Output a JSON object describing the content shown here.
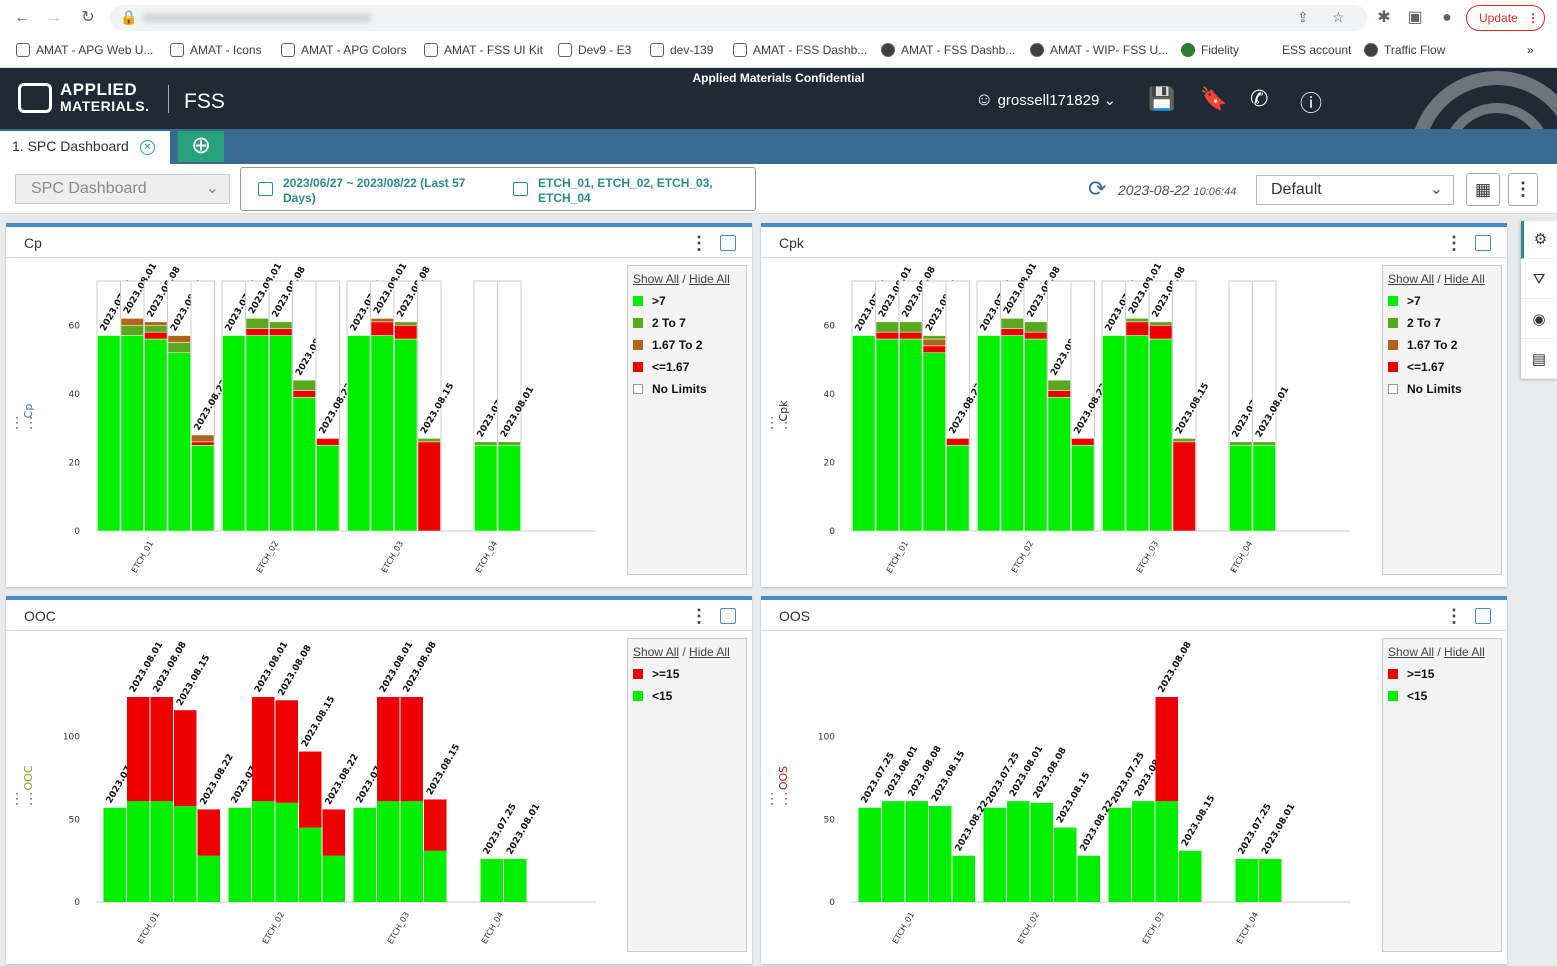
{
  "browser": {
    "update_label": "Update",
    "bookmarks": [
      "AMAT - APG Web U...",
      "AMAT - Icons",
      "AMAT - APG Colors",
      "AMAT - FSS UI Kit",
      "Dev9 - E3",
      "dev-139",
      "AMAT - FSS Dashb...",
      "AMAT - FSS Dashb...",
      "AMAT - WIP- FSS U...",
      "Fidelity",
      "ESS account",
      "Traffic Flow"
    ]
  },
  "header": {
    "logo_line1": "APPLIED",
    "logo_line2": "MATERIALS.",
    "app": "FSS",
    "confidential": "Applied Materials Confidential",
    "user": "grossell171829"
  },
  "tabs": {
    "active": "1. SPC Dashboard"
  },
  "toolbar": {
    "dashboard": "SPC Dashboard",
    "date_range": "2023/06/27 ~ 2023/08/22 (Last 57 Days)",
    "equipment": "ETCH_01, ETCH_02, ETCH_03, ETCH_04",
    "timestamp_date": "2023-08-22",
    "timestamp_time": "10:06:44",
    "view": "Default"
  },
  "colors": {
    "green": "#00ee00",
    "olive": "#5aa81e",
    "brown": "#b0661a",
    "red": "#ee0000",
    "accent": "#4a8cc7",
    "teal": "#2c8c8c"
  },
  "legend": {
    "show_all": "Show All",
    "hide_all": "Hide All"
  },
  "chart_data": [
    {
      "id": "cp",
      "title": "Cp",
      "type": "bar",
      "stacked": true,
      "ylabel": "Cp",
      "ylabel_color": "#3b7bd1",
      "ylim": [
        0,
        70
      ],
      "yticks": [
        0,
        20,
        40,
        60
      ],
      "categories": [
        "ETCH_01",
        "ETCH_02",
        "ETCH_03",
        "ETCH_04"
      ],
      "legend": [
        {
          "name": ">7",
          "color": "#00ee00"
        },
        {
          "name": "2 To 7",
          "color": "#5aa81e"
        },
        {
          "name": "1.67 To 2",
          "color": "#b0661a"
        },
        {
          "name": "<=1.67",
          "color": "#ee0000"
        },
        {
          "name": "No Limits",
          "color": "#ffffff"
        }
      ],
      "bars": [
        {
          "group": 0,
          "label": "2023.07.25",
          "segments": [
            [
              "#00ee00",
              57
            ]
          ]
        },
        {
          "group": 0,
          "label": "2023.08.01",
          "segments": [
            [
              "#00ee00",
              57
            ],
            [
              "#5aa81e",
              3
            ],
            [
              "#b0661a",
              2
            ]
          ]
        },
        {
          "group": 0,
          "label": "2023.08.08",
          "segments": [
            [
              "#00ee00",
              56
            ],
            [
              "#ee0000",
              2
            ],
            [
              "#5aa81e",
              2
            ],
            [
              "#b0661a",
              1
            ]
          ]
        },
        {
          "group": 0,
          "label": "2023.08.15",
          "segments": [
            [
              "#00ee00",
              52
            ],
            [
              "#5aa81e",
              3
            ],
            [
              "#b0661a",
              2
            ]
          ]
        },
        {
          "group": 0,
          "label": "2023.08.22",
          "segments": [
            [
              "#00ee00",
              25
            ],
            [
              "#ee0000",
              1
            ],
            [
              "#b0661a",
              2
            ]
          ]
        },
        {
          "group": 1,
          "label": "2023.07.25",
          "segments": [
            [
              "#00ee00",
              57
            ]
          ]
        },
        {
          "group": 1,
          "label": "2023.08.01",
          "segments": [
            [
              "#00ee00",
              57
            ],
            [
              "#ee0000",
              2
            ],
            [
              "#5aa81e",
              3
            ]
          ]
        },
        {
          "group": 1,
          "label": "2023.08.08",
          "segments": [
            [
              "#00ee00",
              57
            ],
            [
              "#ee0000",
              2
            ],
            [
              "#5aa81e",
              2
            ]
          ]
        },
        {
          "group": 1,
          "label": "2023.08.15",
          "segments": [
            [
              "#00ee00",
              39
            ],
            [
              "#ee0000",
              2
            ],
            [
              "#5aa81e",
              3
            ]
          ]
        },
        {
          "group": 1,
          "label": "2023.08.22",
          "segments": [
            [
              "#00ee00",
              25
            ],
            [
              "#ee0000",
              2
            ]
          ]
        },
        {
          "group": 2,
          "label": "2023.07.25",
          "segments": [
            [
              "#00ee00",
              57
            ]
          ]
        },
        {
          "group": 2,
          "label": "2023.08.01",
          "segments": [
            [
              "#00ee00",
              57
            ],
            [
              "#ee0000",
              4
            ],
            [
              "#b0661a",
              1
            ]
          ]
        },
        {
          "group": 2,
          "label": "2023.08.08",
          "segments": [
            [
              "#00ee00",
              56
            ],
            [
              "#ee0000",
              4
            ],
            [
              "#5aa81e",
              1
            ]
          ]
        },
        {
          "group": 2,
          "label": "2023.08.15",
          "segments": [
            [
              "#ee0000",
              26
            ],
            [
              "#5aa81e",
              1
            ]
          ]
        },
        {
          "group": 3,
          "label": "2023.07.25",
          "segments": [
            [
              "#00ee00",
              25
            ],
            [
              "#5aa81e",
              1
            ]
          ]
        },
        {
          "group": 3,
          "label": "2023.08.01",
          "segments": [
            [
              "#00ee00",
              25
            ],
            [
              "#5aa81e",
              1
            ]
          ]
        }
      ]
    },
    {
      "id": "cpk",
      "title": "Cpk",
      "type": "bar",
      "stacked": true,
      "ylabel": "Cpk",
      "ylabel_color": "#333333",
      "ylim": [
        0,
        70
      ],
      "yticks": [
        0,
        20,
        40,
        60
      ],
      "categories": [
        "ETCH_01",
        "ETCH_02",
        "ETCH_03",
        "ETCH_04"
      ],
      "legend": [
        {
          "name": ">7",
          "color": "#00ee00"
        },
        {
          "name": "2 To 7",
          "color": "#5aa81e"
        },
        {
          "name": "1.67 To 2",
          "color": "#b0661a"
        },
        {
          "name": "<=1.67",
          "color": "#ee0000"
        },
        {
          "name": "No Limits",
          "color": "#ffffff"
        }
      ],
      "bars": [
        {
          "group": 0,
          "label": "2023.07.25",
          "segments": [
            [
              "#00ee00",
              57
            ]
          ]
        },
        {
          "group": 0,
          "label": "2023.08.01",
          "segments": [
            [
              "#00ee00",
              56
            ],
            [
              "#ee0000",
              2
            ],
            [
              "#5aa81e",
              3
            ]
          ]
        },
        {
          "group": 0,
          "label": "2023.08.08",
          "segments": [
            [
              "#00ee00",
              56
            ],
            [
              "#ee0000",
              2
            ],
            [
              "#5aa81e",
              3
            ]
          ]
        },
        {
          "group": 0,
          "label": "2023.08.15",
          "segments": [
            [
              "#00ee00",
              52
            ],
            [
              "#ee0000",
              2
            ],
            [
              "#b0661a",
              2
            ],
            [
              "#5aa81e",
              1
            ]
          ]
        },
        {
          "group": 0,
          "label": "2023.08.22",
          "segments": [
            [
              "#00ee00",
              25
            ],
            [
              "#ee0000",
              2
            ]
          ]
        },
        {
          "group": 1,
          "label": "2023.07.25",
          "segments": [
            [
              "#00ee00",
              57
            ]
          ]
        },
        {
          "group": 1,
          "label": "2023.08.01",
          "segments": [
            [
              "#00ee00",
              57
            ],
            [
              "#ee0000",
              2
            ],
            [
              "#5aa81e",
              3
            ]
          ]
        },
        {
          "group": 1,
          "label": "2023.08.08",
          "segments": [
            [
              "#00ee00",
              56
            ],
            [
              "#ee0000",
              2
            ],
            [
              "#5aa81e",
              3
            ]
          ]
        },
        {
          "group": 1,
          "label": "2023.08.15",
          "segments": [
            [
              "#00ee00",
              39
            ],
            [
              "#ee0000",
              2
            ],
            [
              "#5aa81e",
              3
            ]
          ]
        },
        {
          "group": 1,
          "label": "2023.08.22",
          "segments": [
            [
              "#00ee00",
              25
            ],
            [
              "#ee0000",
              2
            ]
          ]
        },
        {
          "group": 2,
          "label": "2023.07.25",
          "segments": [
            [
              "#00ee00",
              57
            ]
          ]
        },
        {
          "group": 2,
          "label": "2023.08.01",
          "segments": [
            [
              "#00ee00",
              57
            ],
            [
              "#ee0000",
              4
            ],
            [
              "#5aa81e",
              1
            ]
          ]
        },
        {
          "group": 2,
          "label": "2023.08.08",
          "segments": [
            [
              "#00ee00",
              56
            ],
            [
              "#ee0000",
              4
            ],
            [
              "#5aa81e",
              1
            ]
          ]
        },
        {
          "group": 2,
          "label": "2023.08.15",
          "segments": [
            [
              "#ee0000",
              26
            ],
            [
              "#5aa81e",
              1
            ]
          ]
        },
        {
          "group": 3,
          "label": "2023.07.25",
          "segments": [
            [
              "#00ee00",
              25
            ],
            [
              "#5aa81e",
              1
            ]
          ]
        },
        {
          "group": 3,
          "label": "2023.08.01",
          "segments": [
            [
              "#00ee00",
              25
            ],
            [
              "#5aa81e",
              1
            ]
          ]
        }
      ]
    },
    {
      "id": "ooc",
      "title": "OOC",
      "type": "bar",
      "stacked": true,
      "ylabel": "OOC",
      "ylabel_color": "#7aa81e",
      "ylim": [
        0,
        150
      ],
      "yticks": [
        0,
        50,
        100
      ],
      "categories": [
        "ETCH_01",
        "ETCH_02",
        "ETCH_03",
        "ETCH_04"
      ],
      "legend": [
        {
          "name": ">=15",
          "color": "#ee0000"
        },
        {
          "name": "<15",
          "color": "#00ee00"
        }
      ],
      "bars": [
        {
          "group": 0,
          "label": "2023.07.25",
          "segments": [
            [
              "#00ee00",
              57
            ]
          ]
        },
        {
          "group": 0,
          "label": "2023.08.01",
          "segments": [
            [
              "#00ee00",
              61
            ],
            [
              "#ee0000",
              63
            ]
          ]
        },
        {
          "group": 0,
          "label": "2023.08.08",
          "segments": [
            [
              "#00ee00",
              61
            ],
            [
              "#ee0000",
              63
            ]
          ]
        },
        {
          "group": 0,
          "label": "2023.08.15",
          "segments": [
            [
              "#00ee00",
              58
            ],
            [
              "#ee0000",
              58
            ]
          ]
        },
        {
          "group": 0,
          "label": "2023.08.22",
          "segments": [
            [
              "#00ee00",
              28
            ],
            [
              "#ee0000",
              28
            ]
          ]
        },
        {
          "group": 1,
          "label": "2023.07.25",
          "segments": [
            [
              "#00ee00",
              57
            ]
          ]
        },
        {
          "group": 1,
          "label": "2023.08.01",
          "segments": [
            [
              "#00ee00",
              61
            ],
            [
              "#ee0000",
              63
            ]
          ]
        },
        {
          "group": 1,
          "label": "2023.08.08",
          "segments": [
            [
              "#00ee00",
              60
            ],
            [
              "#ee0000",
              62
            ]
          ]
        },
        {
          "group": 1,
          "label": "2023.08.15",
          "segments": [
            [
              "#00ee00",
              45
            ],
            [
              "#ee0000",
              46
            ]
          ]
        },
        {
          "group": 1,
          "label": "2023.08.22",
          "segments": [
            [
              "#00ee00",
              28
            ],
            [
              "#ee0000",
              28
            ]
          ]
        },
        {
          "group": 2,
          "label": "2023.07.25",
          "segments": [
            [
              "#00ee00",
              57
            ]
          ]
        },
        {
          "group": 2,
          "label": "2023.08.01",
          "segments": [
            [
              "#00ee00",
              61
            ],
            [
              "#ee0000",
              63
            ]
          ]
        },
        {
          "group": 2,
          "label": "2023.08.08",
          "segments": [
            [
              "#00ee00",
              61
            ],
            [
              "#ee0000",
              63
            ]
          ]
        },
        {
          "group": 2,
          "label": "2023.08.15",
          "segments": [
            [
              "#00ee00",
              31
            ],
            [
              "#ee0000",
              31
            ]
          ]
        },
        {
          "group": 3,
          "label": "2023.07.25",
          "segments": [
            [
              "#00ee00",
              26
            ]
          ]
        },
        {
          "group": 3,
          "label": "2023.08.01",
          "segments": [
            [
              "#00ee00",
              26
            ]
          ]
        }
      ]
    },
    {
      "id": "oos",
      "title": "OOS",
      "type": "bar",
      "stacked": true,
      "ylabel": "OOS",
      "ylabel_color": "#aa2222",
      "ylim": [
        0,
        150
      ],
      "yticks": [
        0,
        50,
        100
      ],
      "categories": [
        "ETCH_01",
        "ETCH_02",
        "ETCH_03",
        "ETCH_04"
      ],
      "legend": [
        {
          "name": ">=15",
          "color": "#ee0000"
        },
        {
          "name": "<15",
          "color": "#00ee00"
        }
      ],
      "bars": [
        {
          "group": 0,
          "label": "2023.07.25",
          "segments": [
            [
              "#00ee00",
              57
            ]
          ]
        },
        {
          "group": 0,
          "label": "2023.08.01",
          "segments": [
            [
              "#00ee00",
              61
            ]
          ]
        },
        {
          "group": 0,
          "label": "2023.08.08",
          "segments": [
            [
              "#00ee00",
              61
            ]
          ]
        },
        {
          "group": 0,
          "label": "2023.08.15",
          "segments": [
            [
              "#00ee00",
              58
            ]
          ]
        },
        {
          "group": 0,
          "label": "2023.08.22",
          "segments": [
            [
              "#00ee00",
              28
            ]
          ]
        },
        {
          "group": 1,
          "label": "2023.07.25",
          "segments": [
            [
              "#00ee00",
              57
            ]
          ]
        },
        {
          "group": 1,
          "label": "2023.08.01",
          "segments": [
            [
              "#00ee00",
              61
            ]
          ]
        },
        {
          "group": 1,
          "label": "2023.08.08",
          "segments": [
            [
              "#00ee00",
              60
            ]
          ]
        },
        {
          "group": 1,
          "label": "2023.08.15",
          "segments": [
            [
              "#00ee00",
              45
            ]
          ]
        },
        {
          "group": 1,
          "label": "2023.08.22",
          "segments": [
            [
              "#00ee00",
              28
            ]
          ]
        },
        {
          "group": 2,
          "label": "2023.07.25",
          "segments": [
            [
              "#00ee00",
              57
            ]
          ]
        },
        {
          "group": 2,
          "label": "2023.08.01",
          "segments": [
            [
              "#00ee00",
              61
            ]
          ]
        },
        {
          "group": 2,
          "label": "2023.08.08",
          "segments": [
            [
              "#00ee00",
              61
            ],
            [
              "#ee0000",
              63
            ]
          ]
        },
        {
          "group": 2,
          "label": "2023.08.15",
          "segments": [
            [
              "#00ee00",
              31
            ]
          ]
        },
        {
          "group": 3,
          "label": "2023.07.25",
          "segments": [
            [
              "#00ee00",
              26
            ]
          ]
        },
        {
          "group": 3,
          "label": "2023.08.01",
          "segments": [
            [
              "#00ee00",
              26
            ]
          ]
        }
      ]
    }
  ]
}
